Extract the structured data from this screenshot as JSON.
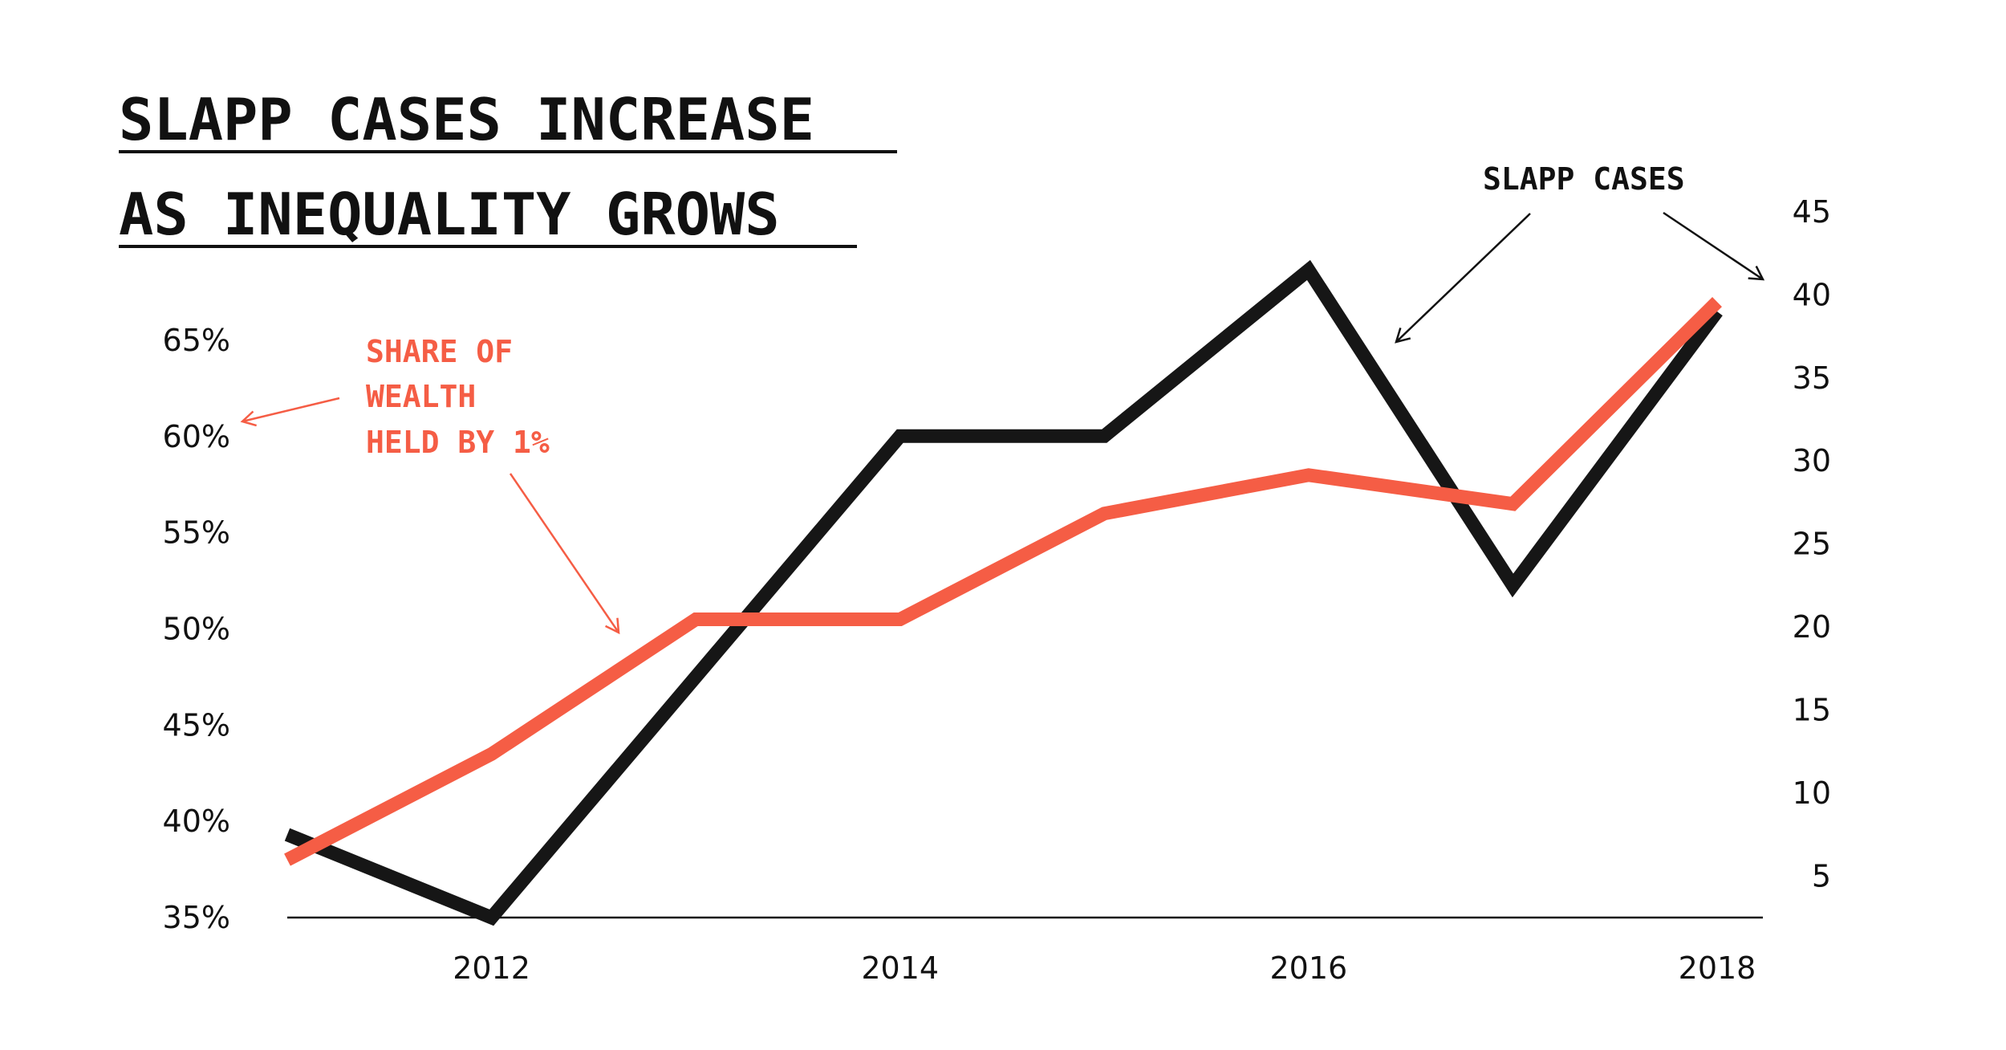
{
  "chart_data": {
    "type": "line",
    "title_lines": [
      "SLAPP CASES INCREASE",
      "AS INEQUALITY GROWS"
    ],
    "x": [
      2011,
      2012,
      2013,
      2014,
      2015,
      2016,
      2017,
      2018
    ],
    "x_ticks": [
      2012,
      2014,
      2016,
      2018
    ],
    "x_tick_labels": [
      "2012",
      "2014",
      "2016",
      "2018"
    ],
    "xlim": [
      2011,
      2018
    ],
    "grid": false,
    "left_axis": {
      "ylim": [
        35,
        65
      ],
      "ticks": [
        35,
        40,
        45,
        50,
        55,
        60,
        65
      ],
      "tick_labels": [
        "35%",
        "40%",
        "45%",
        "50%",
        "55%",
        "60%",
        "65%"
      ]
    },
    "right_axis": {
      "ylim": [
        2.5,
        45
      ],
      "ticks": [
        5,
        10,
        15,
        20,
        25,
        30,
        35,
        40,
        45
      ],
      "tick_labels": [
        "5",
        "10",
        "15",
        "20",
        "25",
        "30",
        "35",
        "40",
        "45"
      ]
    },
    "series": [
      {
        "name": "SLAPP CASES",
        "axis": "right",
        "color": "#161616",
        "x": [
          2011,
          2012,
          2014,
          2015,
          2016,
          2017,
          2018
        ],
        "values": [
          7.5,
          2.5,
          31.5,
          31.5,
          41.5,
          22.5,
          39.0
        ]
      },
      {
        "name": "SHARE OF WEALTH HELD BY 1%",
        "axis": "left",
        "color": "#f55d45",
        "x": [
          2011,
          2012,
          2013,
          2014,
          2015,
          2016,
          2017,
          2018
        ],
        "values": [
          38.0,
          43.5,
          50.5,
          50.5,
          56.0,
          58.0,
          56.5,
          67.0
        ]
      }
    ],
    "annotations": {
      "slapp_label": "SLAPP CASES",
      "wealth_label_lines": [
        "SHARE OF",
        "WEALTH",
        "HELD BY 1%"
      ]
    }
  }
}
